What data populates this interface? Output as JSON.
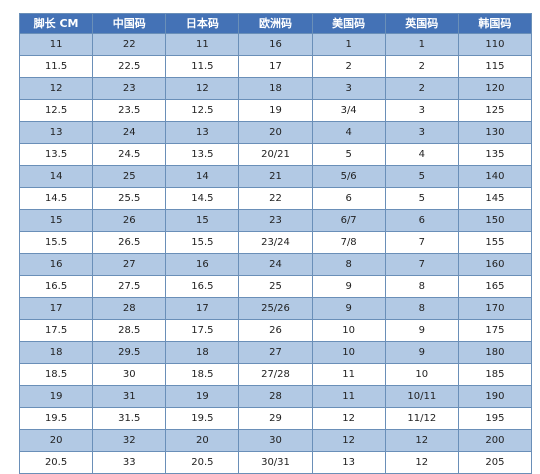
{
  "table": {
    "headers": [
      "脚长 CM",
      "中国码",
      "日本码",
      "欧洲码",
      "美国码",
      "英国码",
      "韩国码"
    ],
    "rows": [
      [
        "11",
        "22",
        "11",
        "16",
        "1",
        "1",
        "110"
      ],
      [
        "11.5",
        "22.5",
        "11.5",
        "17",
        "2",
        "2",
        "115"
      ],
      [
        "12",
        "23",
        "12",
        "18",
        "3",
        "2",
        "120"
      ],
      [
        "12.5",
        "23.5",
        "12.5",
        "19",
        "3/4",
        "3",
        "125"
      ],
      [
        "13",
        "24",
        "13",
        "20",
        "4",
        "3",
        "130"
      ],
      [
        "13.5",
        "24.5",
        "13.5",
        "20/21",
        "5",
        "4",
        "135"
      ],
      [
        "14",
        "25",
        "14",
        "21",
        "5/6",
        "5",
        "140"
      ],
      [
        "14.5",
        "25.5",
        "14.5",
        "22",
        "6",
        "5",
        "145"
      ],
      [
        "15",
        "26",
        "15",
        "23",
        "6/7",
        "6",
        "150"
      ],
      [
        "15.5",
        "26.5",
        "15.5",
        "23/24",
        "7/8",
        "7",
        "155"
      ],
      [
        "16",
        "27",
        "16",
        "24",
        "8",
        "7",
        "160"
      ],
      [
        "16.5",
        "27.5",
        "16.5",
        "25",
        "9",
        "8",
        "165"
      ],
      [
        "17",
        "28",
        "17",
        "25/26",
        "9",
        "8",
        "170"
      ],
      [
        "17.5",
        "28.5",
        "17.5",
        "26",
        "10",
        "9",
        "175"
      ],
      [
        "18",
        "29.5",
        "18",
        "27",
        "10",
        "9",
        "180"
      ],
      [
        "18.5",
        "30",
        "18.5",
        "27/28",
        "11",
        "10",
        "185"
      ],
      [
        "19",
        "31",
        "19",
        "28",
        "11",
        "10/11",
        "190"
      ],
      [
        "19.5",
        "31.5",
        "19.5",
        "29",
        "12",
        "11/12",
        "195"
      ],
      [
        "20",
        "32",
        "20",
        "30",
        "12",
        "12",
        "200"
      ],
      [
        "20.5",
        "33",
        "20.5",
        "30/31",
        "13",
        "12",
        "205"
      ]
    ]
  },
  "colors": {
    "header_bg": "#4472b6",
    "header_text": "#ffffff",
    "row_alt_bg": "#b2c9e4",
    "row_bg": "#ffffff",
    "border": "#6a8fb8"
  }
}
